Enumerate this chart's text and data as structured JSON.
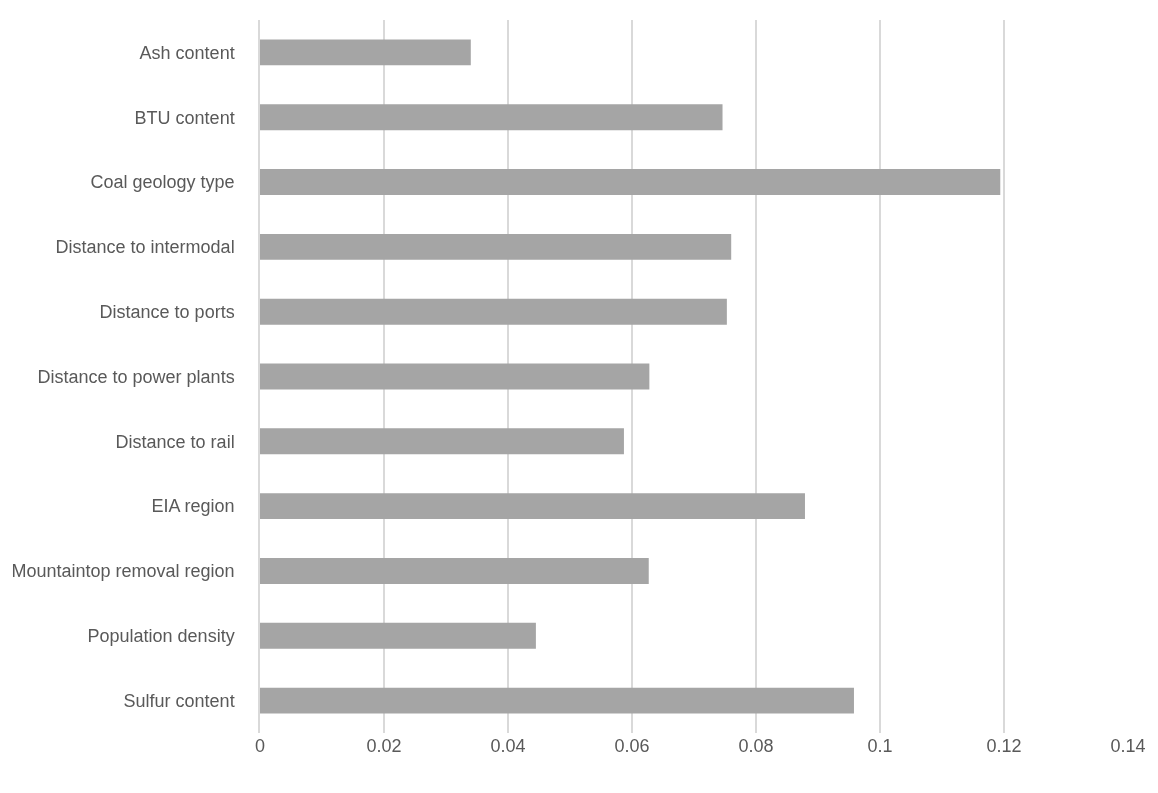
{
  "chart_data": {
    "type": "bar",
    "orientation": "horizontal",
    "categories": [
      "Ash content",
      "BTU content",
      "Coal geology type",
      "Distance to intermodal",
      "Distance to ports",
      "Distance to power plants",
      "Distance to rail",
      "EIA region",
      "Mountaintop removal region",
      "Population density",
      "Sulfur content"
    ],
    "values": [
      0.034,
      0.0746,
      0.1194,
      0.076,
      0.0753,
      0.0628,
      0.0587,
      0.0879,
      0.0627,
      0.0445,
      0.0958
    ],
    "color": "#a5a5a5",
    "xlim": [
      0,
      0.14
    ],
    "xticks": [
      0,
      0.02,
      0.04,
      0.06,
      0.08,
      0.1,
      0.12,
      0.14
    ],
    "grid": "x"
  }
}
